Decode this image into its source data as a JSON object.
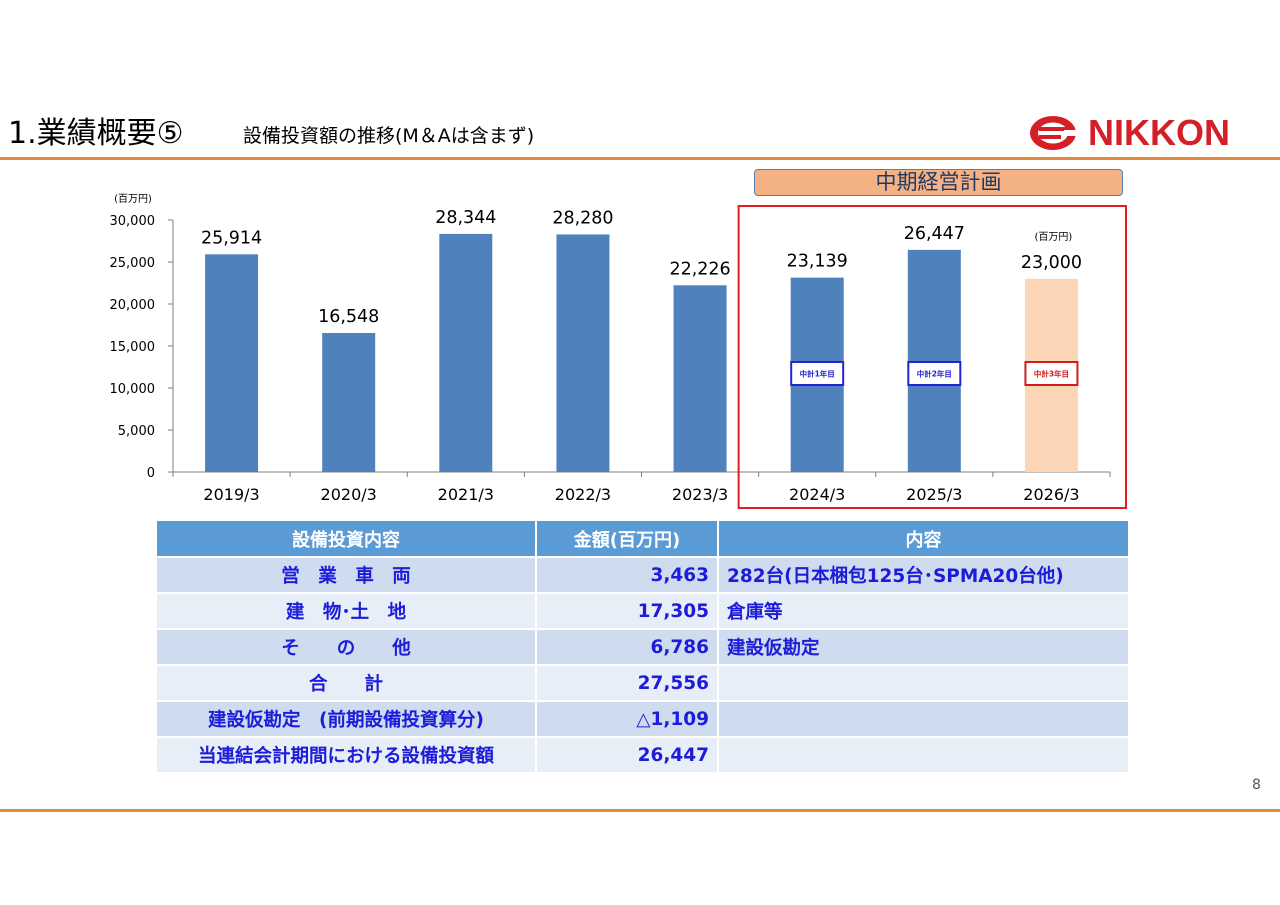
{
  "header": {
    "title": "1.業績概要⑤",
    "subtitle": "設備投資額の推移(M＆Aは含まず)"
  },
  "logo": {
    "text": "NIKKON",
    "color": "#d51f26"
  },
  "page_number": "8",
  "plan_banner": "中期経営計画",
  "colors": {
    "bar": "#4f81bd",
    "bar_plan": "#fbd5b5",
    "plan_box": "#e31d1d",
    "accent_rule": "#e58a3d",
    "table_header": "#5b9bd5",
    "table_text": "#1c1cd9"
  },
  "chart_data": {
    "type": "bar",
    "unit_label": "(百万円)",
    "plan_unit_label": "(百万円)",
    "categories": [
      "2019/3",
      "2020/3",
      "2021/3",
      "2022/3",
      "2023/3",
      "2024/3",
      "2025/3",
      "2026/3"
    ],
    "values": [
      25914,
      16548,
      28344,
      28280,
      22226,
      23139,
      26447,
      23000
    ],
    "value_labels": [
      "25,914",
      "16,548",
      "28,344",
      "28,280",
      "22,226",
      "23,139",
      "26,447",
      "23,000"
    ],
    "ylim": [
      0,
      30000
    ],
    "yticks": [
      0,
      5000,
      10000,
      15000,
      20000,
      25000,
      30000
    ],
    "ytick_labels": [
      "0",
      "5,000",
      "10,000",
      "15,000",
      "20,000",
      "25,000",
      "30,000"
    ],
    "plan_years": [
      {
        "category": "2024/3",
        "tag": "中計1年目",
        "tag_color": "#2424d0",
        "planned": false
      },
      {
        "category": "2025/3",
        "tag": "中計2年目",
        "tag_color": "#2424d0",
        "planned": false
      },
      {
        "category": "2026/3",
        "tag": "中計3年目",
        "tag_color": "#d01c1c",
        "planned": true
      }
    ],
    "grid": false,
    "legend": "none"
  },
  "table": {
    "headers": [
      "設備投資内容",
      "金額(百万円)",
      "内容"
    ],
    "rows": [
      {
        "item": "営　業　車　両",
        "amount": "3,463",
        "content": "282台(日本梱包125台･SPMA20台他)"
      },
      {
        "item": "建　物･土　地",
        "amount": "17,305",
        "content": "倉庫等"
      },
      {
        "item": "そ　　の　　他",
        "amount": "6,786",
        "content": "建設仮勘定"
      },
      {
        "item": "合　　計",
        "amount": "27,556",
        "content": ""
      },
      {
        "item": "建設仮勘定　(前期設備投資算分)",
        "amount": "△1,109",
        "content": ""
      },
      {
        "item": "当連結会計期間における設備投資額",
        "amount": "26,447",
        "content": ""
      }
    ]
  }
}
